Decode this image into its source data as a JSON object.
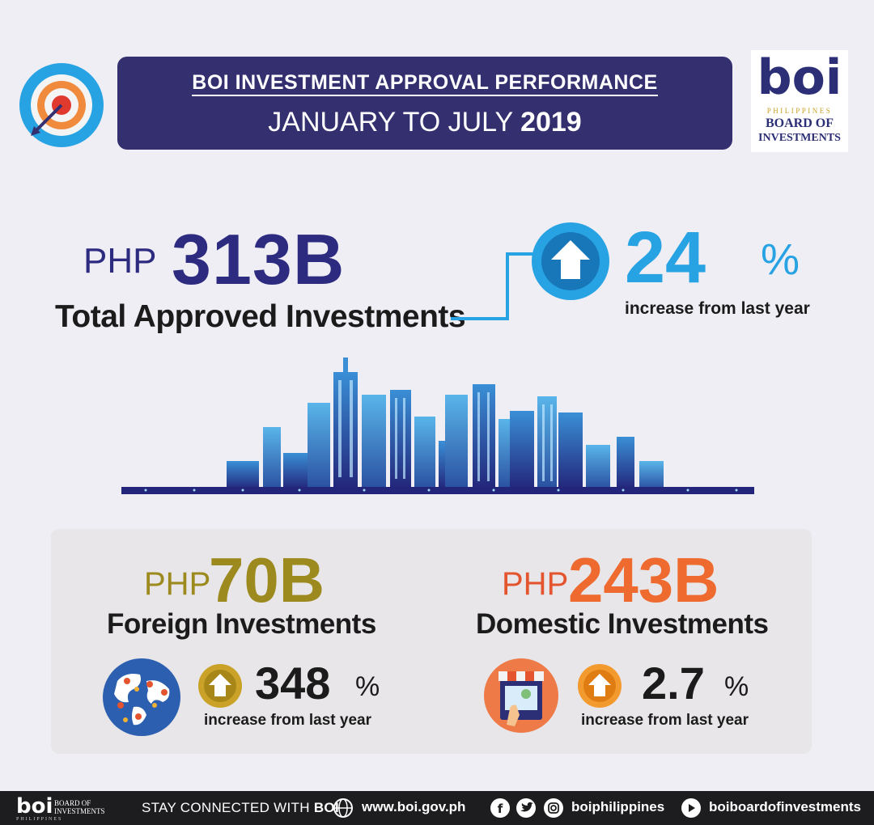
{
  "header": {
    "title_line1": "BOI INVESTMENT APPROVAL PERFORMANCE",
    "period_text": "JANUARY TO JULY",
    "period_year": "2019",
    "icon": "target-icon"
  },
  "logo": {
    "letters": "boi",
    "line1": "PHILIPPINES",
    "line2": "BOARD OF",
    "line3": "INVESTMENTS"
  },
  "total": {
    "prefix": "PHP",
    "value": "313B",
    "label": "Total Approved Investments",
    "change_value": "24",
    "change_unit": "%",
    "change_label": "increase from last year",
    "icon": "up-arrow-icon"
  },
  "foreign": {
    "prefix": "PHP",
    "value": "70B",
    "label": "Foreign Investments",
    "change_value": "348",
    "change_unit": "%",
    "change_label": "increase from last year",
    "icon": "globe-icon"
  },
  "domestic": {
    "prefix": "PHP",
    "value": "243B",
    "label": "Domestic Investments",
    "change_value": "2.7",
    "change_unit": "%",
    "change_label": "increase from last year",
    "icon": "shop-icon"
  },
  "footer": {
    "logo_letters": "boi",
    "logo_line1": "BOARD OF",
    "logo_line2": "INVESTMENTS",
    "logo_line3": "PHILIPPINES",
    "stay_text": "STAY CONNECTED WITH",
    "stay_brand": "BOI",
    "website": "www.boi.gov.ph",
    "social_handle": "boiphilippines",
    "youtube_handle": "boiboardofinvestments"
  },
  "colors": {
    "navy": "#2d2b80",
    "banner": "#34306f",
    "sky_blue": "#27a3e4",
    "gold": "#9c8a1e",
    "orange": "#ee6a2f"
  }
}
